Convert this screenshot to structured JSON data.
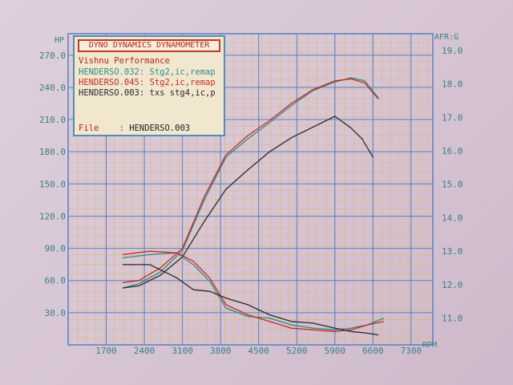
{
  "chart_data": {
    "type": "line",
    "title": "DYNO DYNAMICS DYNAMOMETER",
    "company": "Vishnu Performance",
    "file_label": "File",
    "file_value": "HENDERSO.003",
    "xlabel": "RPM",
    "ylabel": "HP",
    "y2label": "AFR:G",
    "xlim": [
      1000,
      7700
    ],
    "ylim": [
      0,
      290
    ],
    "y2lim": [
      10.2,
      19.5
    ],
    "x_ticks": [
      "1700",
      "2400",
      "3100",
      "3800",
      "4500",
      "5200",
      "5900",
      "6600",
      "7300"
    ],
    "y_ticks": [
      "30.0",
      "60.0",
      "90.0",
      "120.0",
      "150.0",
      "180.0",
      "210.0",
      "240.0",
      "270.0"
    ],
    "y2_ticks": [
      "11.0",
      "12.0",
      "13.0",
      "14.0",
      "15.0",
      "16.0",
      "17.0",
      "18.0",
      "19.0"
    ],
    "grid": true,
    "legend_position": "top-left",
    "colors": {
      "run_032": "#2e8b82",
      "run_045": "#c42a25",
      "run_003": "#2a2a2a",
      "grid": "#5b7fc4",
      "grid_minor": "#e6b35a"
    },
    "series": [
      {
        "name": "HENDERSO.032: Stg2,ic,remap",
        "axis": "left",
        "color": "#2e8b82",
        "x": [
          2000,
          2300,
          2700,
          3100,
          3500,
          3900,
          4300,
          4700,
          5100,
          5500,
          5900,
          6200,
          6450,
          6700
        ],
        "y": [
          53,
          57,
          68,
          88,
          135,
          175,
          192,
          207,
          223,
          237,
          245,
          249,
          246,
          230
        ]
      },
      {
        "name": "HENDERSO.045: Stg2,ic,remap",
        "axis": "left",
        "color": "#c42a25",
        "x": [
          2000,
          2300,
          2700,
          3100,
          3500,
          3900,
          4300,
          4700,
          5100,
          5500,
          5900,
          6200,
          6450,
          6700
        ],
        "y": [
          58,
          60,
          72,
          90,
          138,
          177,
          195,
          209,
          225,
          238,
          246,
          248,
          244,
          229
        ]
      },
      {
        "name": "HENDERSO.003: txs stg4,ic,p",
        "axis": "left",
        "color": "#2a2a2a",
        "x": [
          2000,
          2300,
          2700,
          3100,
          3500,
          3900,
          4300,
          4700,
          5100,
          5500,
          5900,
          6200,
          6400,
          6600
        ],
        "y": [
          53,
          55,
          65,
          82,
          115,
          145,
          163,
          180,
          193,
          203,
          213,
          202,
          192,
          175
        ]
      },
      {
        "name": "AFR HENDERSO.032: Stg2,ic,remap",
        "axis": "right",
        "color": "#2e8b82",
        "x": [
          2000,
          2500,
          3000,
          3300,
          3600,
          3900,
          4300,
          4700,
          5100,
          5500,
          5900,
          6200,
          6500,
          6800
        ],
        "y": [
          12.8,
          12.9,
          12.95,
          12.6,
          12.1,
          11.3,
          11.05,
          11.0,
          10.8,
          10.7,
          10.65,
          10.7,
          10.8,
          11.0
        ]
      },
      {
        "name": "AFR HENDERSO.045: Stg2,ic,remap",
        "axis": "right",
        "color": "#c42a25",
        "x": [
          2000,
          2500,
          3000,
          3300,
          3600,
          3900,
          4300,
          4700,
          5100,
          5500,
          5900,
          6200,
          6500,
          6800
        ],
        "y": [
          12.9,
          13.0,
          12.95,
          12.7,
          12.2,
          11.4,
          11.1,
          10.9,
          10.7,
          10.65,
          10.6,
          10.65,
          10.8,
          10.9
        ]
      },
      {
        "name": "AFR HENDERSO.003: txs stg4,ic,p",
        "axis": "right",
        "color": "#2a2a2a",
        "x": [
          2000,
          2500,
          3000,
          3300,
          3600,
          3900,
          4300,
          4700,
          5100,
          5500,
          5900,
          6200,
          6500,
          6700
        ],
        "y": [
          12.6,
          12.6,
          12.2,
          11.85,
          11.8,
          11.6,
          11.4,
          11.1,
          10.9,
          10.85,
          10.7,
          10.6,
          10.55,
          10.5
        ]
      }
    ]
  }
}
